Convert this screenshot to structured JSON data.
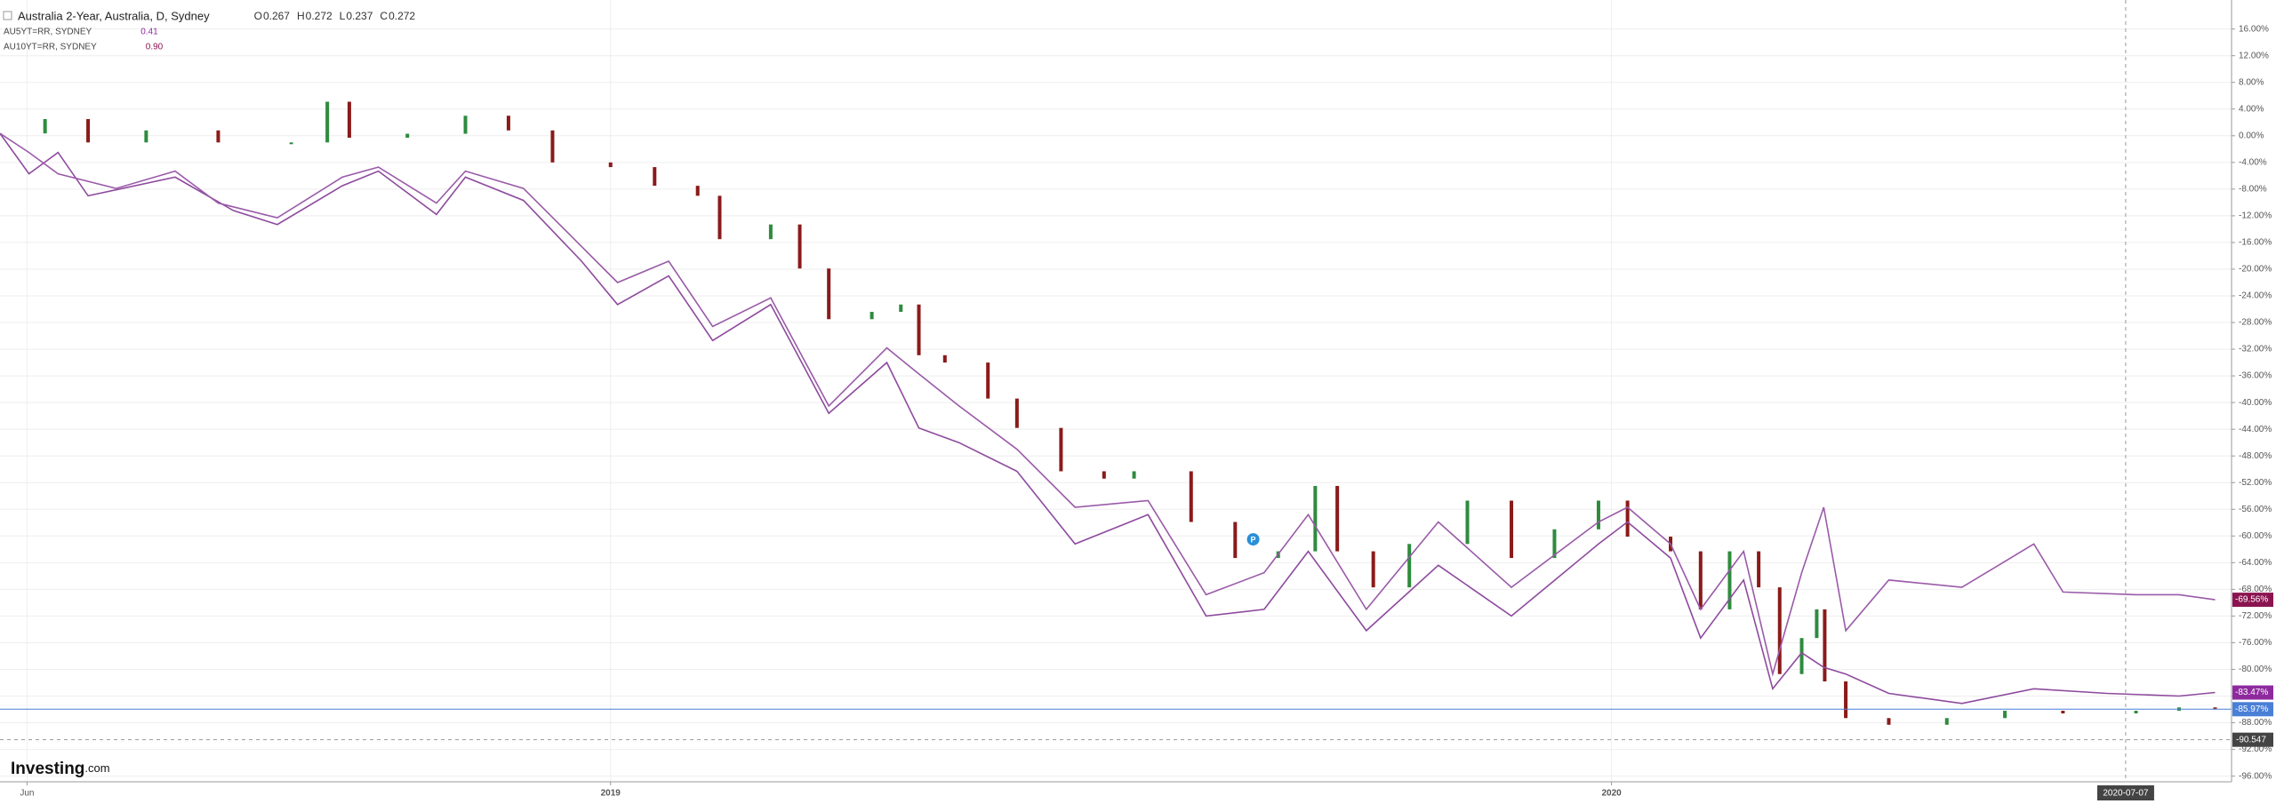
{
  "chart_data": {
    "type": "line",
    "xlim": [
      2018.39,
      2020.615
    ],
    "ylim": [
      -96.85,
      20.35
    ],
    "xticks": [
      {
        "value": 2018.417,
        "label": "Jun"
      },
      2019,
      2020
    ],
    "yticks": [
      {
        "value": 16,
        "label": "16.00%"
      },
      {
        "value": 12,
        "label": "12.00%"
      },
      {
        "value": 8,
        "label": "8.00%"
      },
      {
        "value": 4,
        "label": "4.00%"
      },
      {
        "value": 0,
        "label": "0.00%"
      },
      {
        "value": -4,
        "label": "-4.00%"
      },
      {
        "value": -8,
        "label": "-8.00%"
      },
      {
        "value": -12,
        "label": "-12.00%"
      },
      {
        "value": -16,
        "label": "-16.00%"
      },
      {
        "value": -20,
        "label": "-20.00%"
      },
      {
        "value": -24,
        "label": "-24.00%"
      },
      {
        "value": -28,
        "label": "-28.00%"
      },
      {
        "value": -32,
        "label": "-32.00%"
      },
      {
        "value": -36,
        "label": "-36.00%"
      },
      {
        "value": -40,
        "label": "-40.00%"
      },
      {
        "value": -44,
        "label": "-44.00%"
      },
      {
        "value": -48,
        "label": "-48.00%"
      },
      {
        "value": -52,
        "label": "-52.00%"
      },
      {
        "value": -56,
        "label": "-56.00%"
      },
      {
        "value": -60,
        "label": "-60.00%"
      },
      {
        "value": -64,
        "label": "-64.00%"
      },
      {
        "value": -68,
        "label": "-68.00%"
      },
      {
        "value": -72,
        "label": "-72.00%"
      },
      {
        "value": -76,
        "label": "-76.00%"
      },
      {
        "value": -80,
        "label": "-80.00%"
      },
      {
        "value": -84,
        "label": "-84.00%"
      },
      {
        "value": -88,
        "label": "-88.00%"
      },
      {
        "value": -92,
        "label": "-92.00%"
      },
      {
        "value": -96,
        "label": "-96.00%"
      }
    ],
    "grid": true,
    "ohlc": [
      {
        "label": "O",
        "value": 0.267
      },
      {
        "label": "H",
        "value": 0.272
      },
      {
        "label": "L",
        "value": 0.237
      },
      {
        "label": "C",
        "value": 0.272
      }
    ],
    "series": [
      {
        "name": "Australia 2-Year, Australia, D, Sydney",
        "type": "candle",
        "color": "#8b1a1a",
        "up_color": "#2e8b3e",
        "label_color": "#4a7fd6",
        "x": [
          2018.39,
          2018.435,
          2018.478,
          2018.536,
          2018.608,
          2018.681,
          2018.717,
          2018.739,
          2018.797,
          2018.855,
          2018.898,
          2018.942,
          2019.0,
          2019.044,
          2019.087,
          2019.109,
          2019.16,
          2019.189,
          2019.218,
          2019.261,
          2019.29,
          2019.308,
          2019.334,
          2019.377,
          2019.406,
          2019.45,
          2019.493,
          2019.523,
          2019.58,
          2019.624,
          2019.667,
          2019.704,
          2019.726,
          2019.762,
          2019.798,
          2019.856,
          2019.9,
          2019.943,
          2019.987,
          2020.016,
          2020.059,
          2020.089,
          2020.118,
          2020.147,
          2020.168,
          2020.19,
          2020.205,
          2020.213,
          2020.234,
          2020.277,
          2020.335,
          2020.393,
          2020.451,
          2020.524,
          2020.567,
          2020.603
        ],
        "values": [
          0.35,
          2.5,
          -1,
          0.8,
          -1,
          -1,
          5.1,
          -0.3,
          0.3,
          3,
          0.8,
          -4,
          -4.7,
          -7.5,
          -9,
          -15.5,
          -13.3,
          -19.9,
          -27.5,
          -26.4,
          -25.3,
          -32.9,
          -34,
          -39.4,
          -43.8,
          -50.3,
          -51.4,
          -50.3,
          -57.9,
          -63.3,
          -62.3,
          -52.5,
          -62.3,
          -67.7,
          -61.2,
          -54.7,
          -63.3,
          -59,
          -54.7,
          -60.1,
          -62.3,
          -71,
          -62.3,
          -67.7,
          -80.7,
          -75.3,
          -71,
          -81.8,
          -87.3,
          -88.3,
          -87.3,
          -86.2,
          -86.6,
          -86.2,
          -85.7,
          -85.97
        ],
        "value_labels": [
          null,
          null,
          null,
          null,
          null,
          null,
          null,
          null,
          null,
          null,
          null,
          null,
          null,
          null,
          null,
          null,
          null,
          null,
          null,
          null,
          null,
          null,
          null,
          null,
          null,
          null,
          null,
          null,
          null,
          null,
          null,
          null,
          null,
          null,
          null,
          null,
          null,
          null,
          null,
          null,
          null,
          null,
          null,
          null,
          null,
          null,
          null,
          null,
          null,
          null,
          null,
          null,
          null,
          null,
          null,
          "-85.97%"
        ]
      },
      {
        "name": "AU5YT=RR, SYDNEY",
        "type": "line",
        "color": "#8e4a9e",
        "label_color": "#8e2a9e",
        "legend_value": 0.41,
        "x": [
          2018.39,
          2018.419,
          2018.448,
          2018.478,
          2018.565,
          2018.623,
          2018.667,
          2018.732,
          2018.768,
          2018.826,
          2018.855,
          2018.913,
          2018.971,
          2019.007,
          2019.058,
          2019.102,
          2019.16,
          2019.218,
          2019.276,
          2019.308,
          2019.348,
          2019.406,
          2019.464,
          2019.537,
          2019.595,
          2019.653,
          2019.697,
          2019.755,
          2019.827,
          2019.9,
          2019.987,
          2020.016,
          2020.059,
          2020.089,
          2020.132,
          2020.161,
          2020.19,
          2020.212,
          2020.234,
          2020.277,
          2020.35,
          2020.422,
          2020.495,
          2020.567,
          2020.603
        ],
        "values": [
          0.35,
          -5.7,
          -2.5,
          -9,
          -6.2,
          -11.2,
          -13.3,
          -7.5,
          -5.3,
          -11.8,
          -6.2,
          -9.7,
          -18.8,
          -25.3,
          -21,
          -30.7,
          -25.3,
          -41.6,
          -34,
          -43.8,
          -46,
          -50.3,
          -61.2,
          -56.8,
          -72,
          -71,
          -62.3,
          -74.2,
          -64.4,
          -72,
          -61.2,
          -57.9,
          -63.3,
          -75.3,
          -66.6,
          -82.9,
          -77.5,
          -79.7,
          -80.7,
          -83.6,
          -85.1,
          -82.9,
          -83.6,
          -84,
          -83.47
        ],
        "value_labels": [
          null,
          null,
          null,
          null,
          null,
          null,
          null,
          null,
          null,
          null,
          null,
          null,
          null,
          null,
          null,
          null,
          null,
          null,
          null,
          null,
          null,
          null,
          null,
          null,
          null,
          null,
          null,
          null,
          null,
          null,
          null,
          null,
          null,
          null,
          null,
          null,
          null,
          null,
          null,
          null,
          null,
          null,
          null,
          null,
          "-83.47%"
        ]
      },
      {
        "name": "AU10YT=RR, SYDNEY",
        "type": "line",
        "color": "#9a5aa8",
        "label_color": "#8b1450",
        "legend_value": "0.90",
        "x": [
          2018.39,
          2018.419,
          2018.448,
          2018.506,
          2018.565,
          2018.608,
          2018.667,
          2018.732,
          2018.768,
          2018.826,
          2018.855,
          2018.913,
          2018.971,
          2019.007,
          2019.058,
          2019.102,
          2019.16,
          2019.218,
          2019.276,
          2019.308,
          2019.348,
          2019.406,
          2019.464,
          2019.537,
          2019.595,
          2019.653,
          2019.697,
          2019.755,
          2019.827,
          2019.9,
          2019.987,
          2020.016,
          2020.059,
          2020.089,
          2020.132,
          2020.161,
          2020.19,
          2020.212,
          2020.234,
          2020.277,
          2020.35,
          2020.422,
          2020.451,
          2020.524,
          2020.567,
          2020.603
        ],
        "values": [
          0.35,
          -2.5,
          -5.7,
          -7.9,
          -5.3,
          -10.1,
          -12.3,
          -6.2,
          -4.7,
          -10.1,
          -5.3,
          -7.9,
          -16.6,
          -22,
          -18.8,
          -28.6,
          -24.3,
          -40.5,
          -31.8,
          -35.7,
          -40.5,
          -47,
          -55.7,
          -54.7,
          -68.8,
          -65.5,
          -56.8,
          -71,
          -57.9,
          -67.7,
          -57.9,
          -55.7,
          -61.2,
          -71,
          -62.3,
          -80.7,
          -65.5,
          -55.7,
          -74.2,
          -66.6,
          -67.7,
          -61.2,
          -68.4,
          -68.8,
          -68.8,
          -69.56
        ],
        "value_labels": [
          null,
          null,
          null,
          null,
          null,
          null,
          null,
          null,
          null,
          null,
          null,
          null,
          null,
          null,
          null,
          null,
          null,
          null,
          null,
          null,
          null,
          null,
          null,
          null,
          null,
          null,
          null,
          null,
          null,
          null,
          null,
          null,
          null,
          null,
          null,
          null,
          null,
          null,
          null,
          null,
          null,
          null,
          null,
          null,
          null,
          "-69.56%"
        ]
      }
    ],
    "marker": {
      "label": "P",
      "x": 2019.642,
      "y": -60.5
    },
    "crosshair": {
      "x": "2020-07-07",
      "y": -90.547
    },
    "logo_brand": "Investing",
    "logo_suffix": ".com"
  }
}
